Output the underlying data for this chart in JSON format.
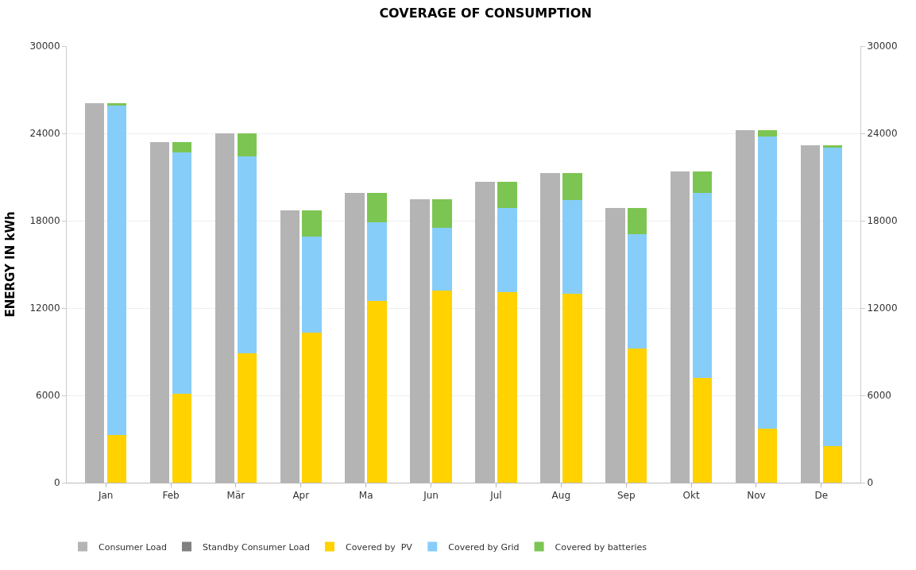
{
  "chart_data": {
    "type": "bar",
    "title": "COVERAGE OF CONSUMPTION",
    "ylabel": "ENERGY IN kWh",
    "categories": [
      "Jan",
      "Feb",
      "Mär",
      "Apr",
      "Ma",
      "Jun",
      "Jul",
      "Aug",
      "Sep",
      "Okt",
      "Nov",
      "De"
    ],
    "stacked": true,
    "series": [
      {
        "name": "Consumer Load",
        "color": "#b4b4b4",
        "axis": "y2",
        "values": [
          26100,
          23400,
          24000,
          18700,
          19900,
          19500,
          20700,
          21300,
          18900,
          21400,
          24200,
          23200
        ]
      },
      {
        "name": "Standby Consumer Load",
        "color": "#808080",
        "axis": "y2",
        "values": [
          null,
          null,
          null,
          null,
          null,
          null,
          null,
          null,
          null,
          null,
          null,
          null
        ]
      },
      {
        "name": "Covered by  PV",
        "color": "#ffd200",
        "values": [
          3300,
          6100,
          8900,
          10300,
          12500,
          13200,
          13100,
          13000,
          9200,
          7200,
          3700,
          2500
        ]
      },
      {
        "name": "Covered by Grid",
        "color": "#87cdfa",
        "values": [
          22600,
          16600,
          13500,
          6600,
          5400,
          4300,
          5800,
          6400,
          7900,
          12700,
          20100,
          20500
        ]
      },
      {
        "name": "Covered by batteries",
        "color": "#7cc552",
        "values": [
          200,
          700,
          1600,
          1800,
          2000,
          2000,
          1800,
          1900,
          1800,
          1500,
          400,
          200
        ]
      }
    ],
    "ylim": [
      0,
      30000
    ],
    "yticks": [
      0,
      6000,
      12000,
      18000,
      24000,
      30000
    ],
    "y2lim": [
      0,
      30000
    ],
    "y2ticks": [
      0,
      6000,
      12000,
      18000,
      24000,
      30000
    ],
    "grid": "y",
    "legend": "bottom"
  }
}
